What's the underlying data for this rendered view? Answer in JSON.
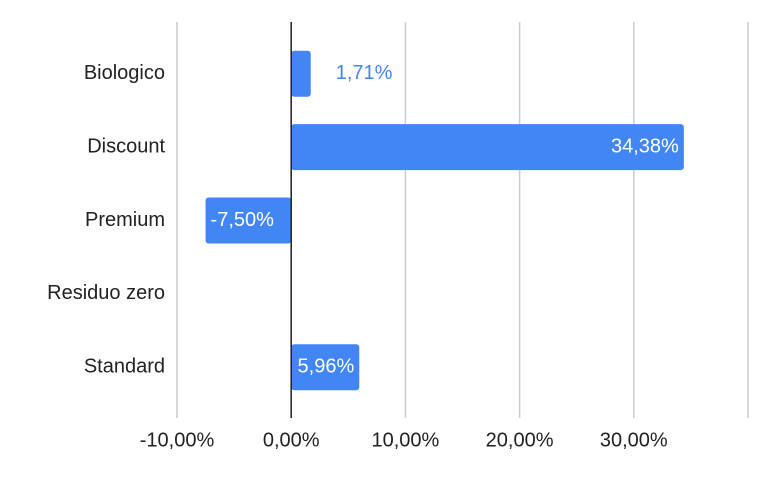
{
  "chart_data": {
    "type": "bar",
    "orientation": "horizontal",
    "categories": [
      "Biologico",
      "Discount",
      "Premium",
      "Residuo zero",
      "Standard"
    ],
    "values": [
      1.71,
      34.38,
      -7.5,
      null,
      5.96
    ],
    "value_labels": [
      "1,71%",
      "34,38%",
      "-7,50%",
      null,
      "5,96%"
    ],
    "color": "#4285f4",
    "xlim": [
      -10,
      40
    ],
    "xticks": [
      {
        "value": -10,
        "label": "-10,00%"
      },
      {
        "value": 0,
        "label": "0,00%"
      },
      {
        "value": 10,
        "label": "10,00%"
      },
      {
        "value": 20,
        "label": "20,00%"
      },
      {
        "value": 30,
        "label": "30,00%"
      }
    ],
    "grid": true
  }
}
